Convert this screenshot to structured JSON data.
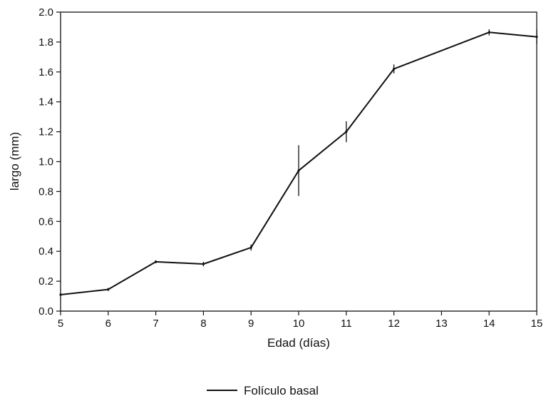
{
  "chart_data": {
    "type": "line",
    "xlabel": "Edad (días)",
    "ylabel": "largo (mm)",
    "xlim": [
      5,
      15
    ],
    "ylim": [
      0.0,
      2.0
    ],
    "x_ticks": [
      "5",
      "6",
      "7",
      "8",
      "9",
      "10",
      "11",
      "12",
      "13",
      "14",
      "15"
    ],
    "y_ticks": [
      "0.0",
      "0.2",
      "0.4",
      "0.6",
      "0.8",
      "1.0",
      "1.2",
      "1.4",
      "1.6",
      "1.8",
      "2.0"
    ],
    "grid": false,
    "legend_position": "bottom-center",
    "series": [
      {
        "name": "Folículo basal",
        "color": "#111111",
        "x": [
          5,
          6,
          7,
          8,
          9,
          10,
          11,
          12,
          14,
          15
        ],
        "y": [
          0.11,
          0.145,
          0.33,
          0.315,
          0.425,
          0.94,
          1.2,
          1.62,
          1.865,
          1.835
        ],
        "error": [
          0.01,
          0.01,
          0.01,
          0.015,
          0.02,
          0.17,
          0.07,
          0.03,
          0.02,
          0.05
        ]
      }
    ]
  }
}
